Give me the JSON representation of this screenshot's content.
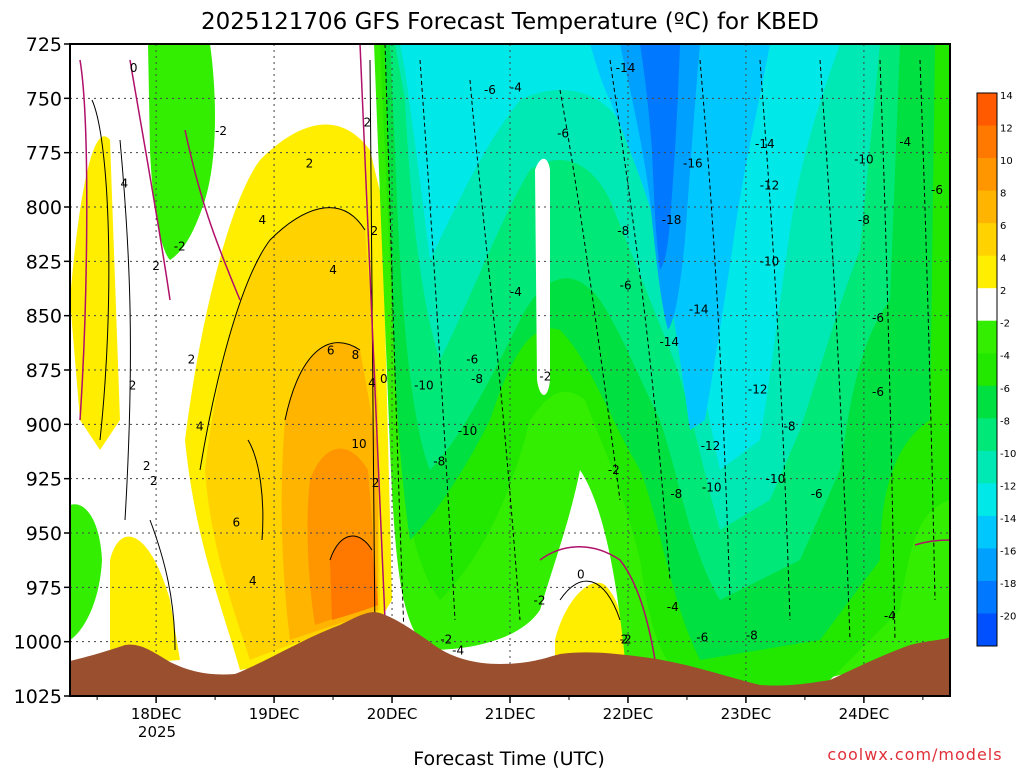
{
  "chart_data": {
    "type": "heatmap",
    "title": "2025121706 GFS Forecast Temperature (ºC) for KBED",
    "xlabel": "Forecast Time (UTC)",
    "ylabel": "",
    "x_ticks": [
      "18DEC",
      "19DEC",
      "20DEC",
      "21DEC",
      "22DEC",
      "23DEC",
      "24DEC"
    ],
    "x_year": "2025",
    "y_ticks": [
      "725",
      "750",
      "775",
      "800",
      "825",
      "850",
      "875",
      "900",
      "925",
      "950",
      "975",
      "1000",
      "1025"
    ],
    "ylim": [
      725,
      1025
    ],
    "grid": true,
    "colorbar": {
      "labels": [
        "14",
        "12",
        "10",
        "8",
        "6",
        "4",
        "2",
        "-2",
        "-4",
        "-6",
        "-8",
        "-10",
        "-12",
        "-14",
        "-16",
        "-18",
        "-20"
      ],
      "colors": [
        "#ff5a00",
        "#ff7800",
        "#ff9600",
        "#ffb400",
        "#ffd200",
        "#ffee00",
        "#ffffff",
        "#33ee00",
        "#22e800",
        "#00e040",
        "#00e878",
        "#00e8b4",
        "#00e8e8",
        "#00c8ff",
        "#00a0ff",
        "#0078ff",
        "#0050ff"
      ]
    },
    "contour_labels": [
      {
        "text": "0",
        "day": 17.81,
        "p": 737
      },
      {
        "text": "-2",
        "day": 18.55,
        "p": 766
      },
      {
        "text": "-2",
        "day": 18.2,
        "p": 819
      },
      {
        "text": "2",
        "day": 18.0,
        "p": 828
      },
      {
        "text": "4",
        "day": 17.73,
        "p": 790
      },
      {
        "text": "2",
        "day": 17.8,
        "p": 883
      },
      {
        "text": "2",
        "day": 17.92,
        "p": 920
      },
      {
        "text": "2",
        "day": 17.98,
        "p": 927
      },
      {
        "text": "2",
        "day": 18.3,
        "p": 871
      },
      {
        "text": "4",
        "day": 18.37,
        "p": 902
      },
      {
        "text": "6",
        "day": 18.68,
        "p": 946
      },
      {
        "text": "4",
        "day": 18.82,
        "p": 973
      },
      {
        "text": "4",
        "day": 18.9,
        "p": 807
      },
      {
        "text": "2",
        "day": 19.3,
        "p": 781
      },
      {
        "text": "2",
        "day": 19.79,
        "p": 762
      },
      {
        "text": "4",
        "day": 19.5,
        "p": 830
      },
      {
        "text": "6",
        "day": 19.48,
        "p": 867
      },
      {
        "text": "8",
        "day": 19.69,
        "p": 869
      },
      {
        "text": "4",
        "day": 19.83,
        "p": 882
      },
      {
        "text": "0",
        "day": 19.93,
        "p": 880
      },
      {
        "text": "2",
        "day": 19.85,
        "p": 812
      },
      {
        "text": "10",
        "day": 19.72,
        "p": 910
      },
      {
        "text": "2",
        "day": 19.86,
        "p": 928
      },
      {
        "text": "-10",
        "day": 20.27,
        "p": 883
      },
      {
        "text": "-8",
        "day": 20.4,
        "p": 918
      },
      {
        "text": "-10",
        "day": 20.64,
        "p": 904
      },
      {
        "text": "-6",
        "day": 20.68,
        "p": 871
      },
      {
        "text": "-8",
        "day": 20.72,
        "p": 880
      },
      {
        "text": "-6",
        "day": 20.83,
        "p": 747
      },
      {
        "text": "-4",
        "day": 21.05,
        "p": 746
      },
      {
        "text": "-6",
        "day": 21.45,
        "p": 767
      },
      {
        "text": "-4",
        "day": 21.05,
        "p": 840
      },
      {
        "text": "-2",
        "day": 21.3,
        "p": 879
      },
      {
        "text": "-8",
        "day": 21.96,
        "p": 812
      },
      {
        "text": "-6",
        "day": 21.98,
        "p": 837
      },
      {
        "text": "-2",
        "day": 21.88,
        "p": 922
      },
      {
        "text": "0",
        "day": 21.6,
        "p": 970
      },
      {
        "text": "-2",
        "day": 21.25,
        "p": 982
      },
      {
        "text": "-2",
        "day": 20.46,
        "p": 1000
      },
      {
        "text": "-4",
        "day": 20.56,
        "p": 1005
      },
      {
        "text": "-2",
        "day": 21.98,
        "p": 1000
      },
      {
        "text": "-14",
        "day": 21.98,
        "p": 737
      },
      {
        "text": "-16",
        "day": 22.55,
        "p": 781
      },
      {
        "text": "-14",
        "day": 23.16,
        "p": 772
      },
      {
        "text": "-18",
        "day": 22.37,
        "p": 807
      },
      {
        "text": "-12",
        "day": 23.2,
        "p": 791
      },
      {
        "text": "-10",
        "day": 23.2,
        "p": 826
      },
      {
        "text": "-14",
        "day": 22.6,
        "p": 848
      },
      {
        "text": "-14",
        "day": 22.35,
        "p": 863
      },
      {
        "text": "-12",
        "day": 23.1,
        "p": 885
      },
      {
        "text": "-8",
        "day": 23.37,
        "p": 902
      },
      {
        "text": "-12",
        "day": 22.7,
        "p": 911
      },
      {
        "text": "-10",
        "day": 22.71,
        "p": 930
      },
      {
        "text": "-10",
        "day": 23.25,
        "p": 926
      },
      {
        "text": "-8",
        "day": 22.41,
        "p": 933
      },
      {
        "text": "-6",
        "day": 23.6,
        "p": 933
      },
      {
        "text": "-10",
        "day": 24.0,
        "p": 779
      },
      {
        "text": "-8",
        "day": 24.0,
        "p": 807
      },
      {
        "text": "-6",
        "day": 24.12,
        "p": 852
      },
      {
        "text": "-6",
        "day": 24.12,
        "p": 886
      },
      {
        "text": "-4",
        "day": 24.35,
        "p": 771
      },
      {
        "text": "-6",
        "day": 24.62,
        "p": 793
      },
      {
        "text": "-4",
        "day": 24.22,
        "p": 989
      },
      {
        "text": "-4",
        "day": 22.38,
        "p": 985
      },
      {
        "text": "-6",
        "day": 22.63,
        "p": 999
      },
      {
        "text": "-8",
        "day": 23.05,
        "p": 998
      },
      {
        "text": "2",
        "day": 21.97,
        "p": 1000
      }
    ]
  },
  "footer": {
    "credit": "coolwx.com/models"
  }
}
